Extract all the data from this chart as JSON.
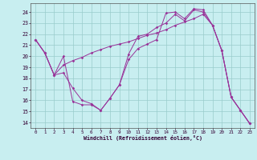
{
  "xlabel": "Windchill (Refroidissement éolien,°C)",
  "xlim": [
    -0.5,
    23.5
  ],
  "ylim": [
    13.5,
    24.8
  ],
  "yticks": [
    14,
    15,
    16,
    17,
    18,
    19,
    20,
    21,
    22,
    23,
    24
  ],
  "xticks": [
    0,
    1,
    2,
    3,
    4,
    5,
    6,
    7,
    8,
    9,
    10,
    11,
    12,
    13,
    14,
    15,
    16,
    17,
    18,
    19,
    20,
    21,
    22,
    23
  ],
  "bg_color": "#c8eef0",
  "line_color": "#993399",
  "grid_color": "#99cccc",
  "series1": [
    [
      0,
      21.5
    ],
    [
      1,
      20.3
    ],
    [
      2,
      18.3
    ],
    [
      3,
      20.0
    ],
    [
      4,
      15.9
    ],
    [
      5,
      15.6
    ],
    [
      6,
      15.6
    ],
    [
      7,
      15.1
    ],
    [
      8,
      16.2
    ],
    [
      9,
      17.4
    ],
    [
      10,
      20.2
    ],
    [
      11,
      21.8
    ],
    [
      12,
      22.0
    ],
    [
      13,
      22.6
    ],
    [
      14,
      23.0
    ],
    [
      15,
      23.8
    ],
    [
      16,
      23.2
    ],
    [
      17,
      24.2
    ],
    [
      18,
      24.0
    ],
    [
      19,
      22.8
    ],
    [
      20,
      20.5
    ],
    [
      21,
      16.3
    ],
    [
      22,
      15.1
    ],
    [
      23,
      13.9
    ]
  ],
  "series2": [
    [
      0,
      21.5
    ],
    [
      1,
      20.3
    ],
    [
      2,
      18.3
    ],
    [
      3,
      19.2
    ],
    [
      4,
      19.6
    ],
    [
      5,
      19.9
    ],
    [
      6,
      20.3
    ],
    [
      7,
      20.6
    ],
    [
      8,
      20.9
    ],
    [
      9,
      21.1
    ],
    [
      10,
      21.3
    ],
    [
      11,
      21.6
    ],
    [
      12,
      21.9
    ],
    [
      13,
      22.1
    ],
    [
      14,
      22.4
    ],
    [
      15,
      22.8
    ],
    [
      16,
      23.1
    ],
    [
      17,
      23.4
    ],
    [
      18,
      23.8
    ],
    [
      19,
      22.8
    ],
    [
      20,
      20.5
    ],
    [
      21,
      16.3
    ],
    [
      22,
      15.1
    ],
    [
      23,
      13.9
    ]
  ],
  "series3": [
    [
      0,
      21.5
    ],
    [
      1,
      20.3
    ],
    [
      2,
      18.3
    ],
    [
      3,
      18.5
    ],
    [
      4,
      17.1
    ],
    [
      5,
      16.0
    ],
    [
      6,
      15.7
    ],
    [
      7,
      15.1
    ],
    [
      8,
      16.2
    ],
    [
      9,
      17.4
    ],
    [
      10,
      19.7
    ],
    [
      11,
      20.7
    ],
    [
      12,
      21.1
    ],
    [
      13,
      21.5
    ],
    [
      14,
      23.9
    ],
    [
      15,
      24.0
    ],
    [
      16,
      23.4
    ],
    [
      17,
      24.3
    ],
    [
      18,
      24.2
    ],
    [
      19,
      22.8
    ],
    [
      20,
      20.5
    ],
    [
      21,
      16.3
    ],
    [
      22,
      15.1
    ],
    [
      23,
      13.9
    ]
  ]
}
